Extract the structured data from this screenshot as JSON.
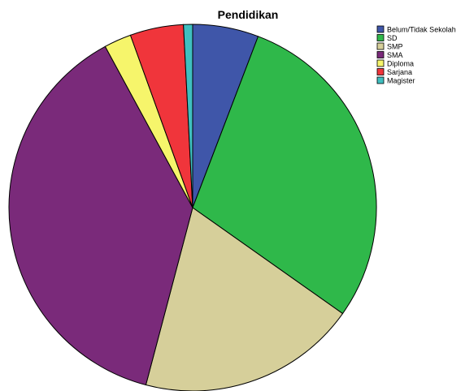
{
  "chart_data": {
    "type": "pie",
    "title": "Pendidikan",
    "categories": [
      "Belum/Tidak Sekolah",
      "SD",
      "SMP",
      "SMA",
      "Diploma",
      "Sarjana",
      "Magister"
    ],
    "values": [
      5.8,
      29.0,
      19.3,
      38.0,
      2.4,
      4.7,
      0.8
    ],
    "colors": [
      "#3f56a9",
      "#2fb84a",
      "#d6cf9a",
      "#7a2a7a",
      "#f6f56b",
      "#f0353b",
      "#3fbfc0"
    ],
    "legend_labels": [
      "Belum/Tidak Sekolah",
      "SD",
      "SMP",
      "SMA",
      "Diploma",
      "Sarjana",
      "Magister"
    ],
    "legend_position": "top-right",
    "start_angle_deg": 0,
    "direction": "clockwise"
  }
}
